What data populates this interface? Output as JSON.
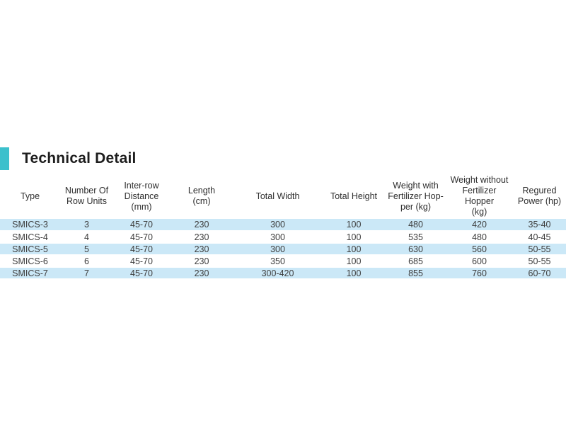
{
  "section": {
    "title": "Technical Detail"
  },
  "theme": {
    "accent_color": "#3cc0cc",
    "row_alt_color": "#cbe8f7",
    "title_color": "#1d1d1d",
    "table_text_color": "#3d3d3d"
  },
  "table": {
    "columns": [
      "Type",
      "Number Of\nRow Units",
      "Inter-row\nDistance\n(mm)",
      "Length\n(cm)",
      "Total Width",
      "Total Height",
      "Weight with\nFertilizer Hop-\nper (kg)",
      "Weight without\nFertilizer Hopper\n(kg)",
      "Regured\nPower (hp)"
    ],
    "rows": [
      [
        "SMICS-3",
        "3",
        "45-70",
        "230",
        "300",
        "100",
        "480",
        "420",
        "35-40"
      ],
      [
        "SMICS-4",
        "4",
        "45-70",
        "230",
        "300",
        "100",
        "535",
        "480",
        "40-45"
      ],
      [
        "SMICS-5",
        "5",
        "45-70",
        "230",
        "300",
        "100",
        "630",
        "560",
        "50-55"
      ],
      [
        "SMICS-6",
        "6",
        "45-70",
        "230",
        "350",
        "100",
        "685",
        "600",
        "50-55"
      ],
      [
        "SMICS-7",
        "7",
        "45-70",
        "230",
        "300-420",
        "100",
        "855",
        "760",
        "60-70"
      ]
    ]
  }
}
